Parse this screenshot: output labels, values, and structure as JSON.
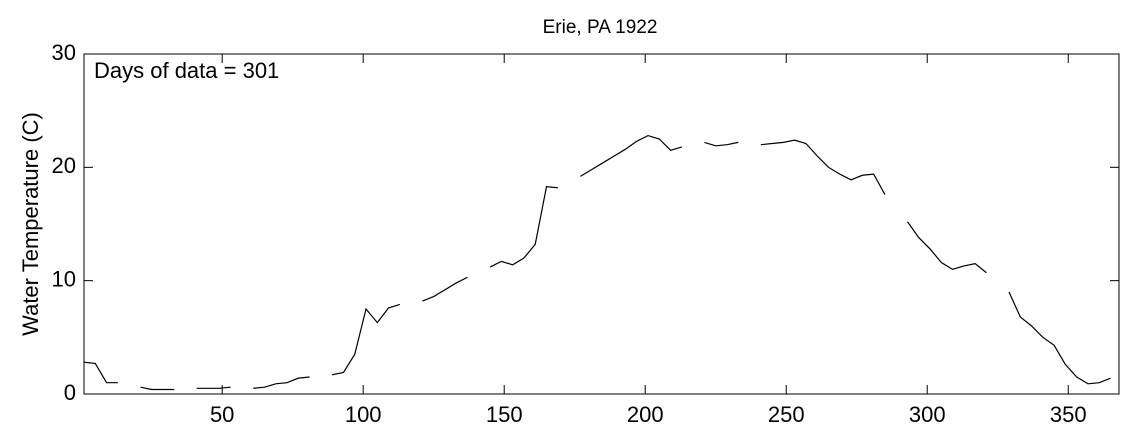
{
  "chart_data": {
    "type": "line",
    "title": "Erie, PA 1922",
    "y_label": "Water Temperature (C)",
    "annotation": "Days of data = 301",
    "x": [
      1,
      5,
      9,
      13,
      17,
      21,
      25,
      29,
      33,
      37,
      41,
      45,
      49,
      53,
      57,
      61,
      65,
      69,
      73,
      77,
      81,
      85,
      89,
      93,
      97,
      101,
      105,
      109,
      113,
      117,
      121,
      125,
      129,
      133,
      137,
      141,
      145,
      149,
      153,
      157,
      161,
      165,
      169,
      173,
      177,
      181,
      185,
      189,
      193,
      197,
      201,
      205,
      209,
      213,
      217,
      221,
      225,
      229,
      233,
      237,
      241,
      245,
      249,
      253,
      257,
      261,
      265,
      269,
      273,
      277,
      281,
      285,
      289,
      293,
      297,
      301,
      305,
      309,
      313,
      317,
      321,
      325,
      329,
      333,
      337,
      341,
      345,
      349,
      353,
      357,
      361,
      365
    ],
    "series": [
      {
        "name": "Water Temperature",
        "color": "#000000",
        "values": [
          2.8,
          2.7,
          1.0,
          1.0,
          null,
          0.6,
          0.4,
          0.4,
          0.4,
          null,
          0.5,
          0.5,
          0.5,
          0.6,
          null,
          0.5,
          0.6,
          0.9,
          1.0,
          1.4,
          1.5,
          null,
          1.7,
          1.9,
          3.5,
          7.5,
          6.3,
          7.6,
          7.9,
          null,
          8.2,
          8.6,
          9.2,
          9.8,
          10.3,
          null,
          11.2,
          11.7,
          11.4,
          12.0,
          13.2,
          18.3,
          18.2,
          null,
          19.2,
          19.8,
          20.4,
          21.0,
          21.6,
          22.3,
          22.8,
          22.5,
          21.5,
          21.8,
          null,
          22.2,
          21.9,
          22.0,
          22.2,
          null,
          22.0,
          22.1,
          22.2,
          22.4,
          22.1,
          21.0,
          20.0,
          19.4,
          18.9,
          19.3,
          19.4,
          17.6,
          null,
          15.2,
          13.8,
          12.8,
          11.6,
          11.0,
          11.3,
          11.5,
          10.7,
          null,
          9.0,
          6.8,
          6.0,
          5.0,
          4.3,
          2.6,
          1.5,
          0.9,
          1.0,
          1.4
        ]
      }
    ],
    "xlim": [
      1,
      368
    ],
    "ylim": [
      0,
      30
    ],
    "xticks": [
      50,
      100,
      150,
      200,
      250,
      300,
      350
    ],
    "yticks": [
      0,
      10,
      20,
      30
    ]
  }
}
